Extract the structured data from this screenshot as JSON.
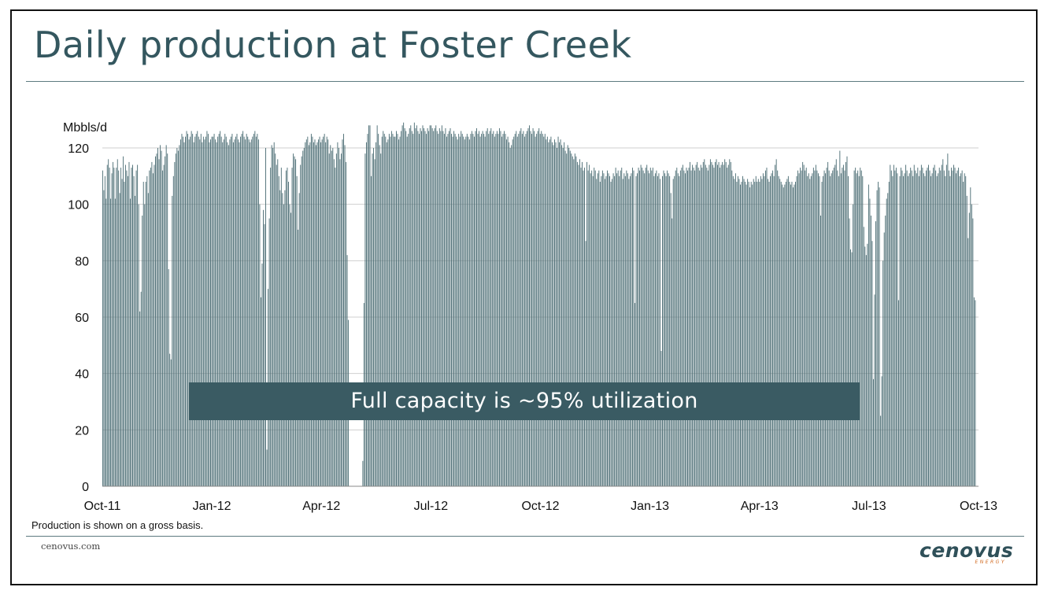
{
  "slide": {
    "title": "Daily production at Foster Creek",
    "note": "Production is shown on a gross basis.",
    "website": "cenovus.com",
    "logo_text": "cenovus",
    "logo_subtext": "ENERGY",
    "annotation": "Full capacity is ~95% utilization"
  },
  "colors": {
    "title": "#34575f",
    "bar": "#4e6f76",
    "banner": "#3a5b63",
    "logo_accent": "#d2691e"
  },
  "chart_data": {
    "type": "bar",
    "ylabel": "Mbbls/d",
    "ylim": [
      0,
      120
    ],
    "yticks": [
      0,
      20,
      40,
      60,
      80,
      100,
      120
    ],
    "grid": true,
    "xticks": [
      "Oct-11",
      "Jan-12",
      "Apr-12",
      "Jul-12",
      "Oct-12",
      "Jan-13",
      "Apr-13",
      "Jul-13",
      "Oct-13"
    ],
    "x_start": "2011-10-01",
    "x_end": "2013-10-01",
    "series": [
      {
        "name": "Daily production",
        "segments": [
          {
            "start": "2011-10-01",
            "end": "2011-10-20",
            "values": [
              112,
              105,
              110,
              102,
              114,
              116,
              113,
              102,
              111,
              115,
              113,
              102,
              113,
              116,
              112,
              104,
              113,
              109,
              117,
              108
            ]
          },
          {
            "start": "2011-10-20",
            "end": "2011-11-05",
            "values": [
              114,
              112,
              110,
              115,
              102,
              113,
              114,
              110,
              103,
              112,
              114,
              100,
              62,
              69,
              96,
              108
            ]
          },
          {
            "start": "2011-11-05",
            "end": "2011-12-01",
            "values": [
              100,
              108,
              110,
              104,
              112,
              113,
              115,
              111,
              114,
              117,
              118,
              120,
              116,
              121,
              119,
              112,
              114,
              117,
              121,
              118,
              77,
              47,
              45,
              103,
              110,
              115
            ]
          },
          {
            "start": "2011-12-01",
            "end": "2012-01-01",
            "values": [
              118,
              120,
              119,
              121,
              123,
              125,
              124,
              122,
              124,
              126,
              125,
              123,
              124,
              126,
              125,
              122,
              124,
              125,
              126,
              124,
              123,
              125,
              122,
              124,
              123,
              124,
              126,
              125,
              122,
              123,
              124
            ]
          },
          {
            "start": "2012-01-01",
            "end": "2012-02-01",
            "values": [
              124,
              125,
              123,
              122,
              124,
              125,
              126,
              124,
              122,
              123,
              125,
              124,
              122,
              121,
              123,
              124,
              125,
              122,
              123,
              124,
              125,
              123,
              122,
              124,
              125,
              126,
              124,
              123,
              125,
              124,
              123
            ]
          },
          {
            "start": "2012-02-01",
            "end": "2012-03-01",
            "values": [
              122,
              123,
              124,
              125,
              126,
              124,
              125,
              123,
              100,
              67,
              79,
              98,
              93,
              120,
              13,
              70,
              95,
              113,
              121,
              120,
              122,
              118,
              114,
              116,
              110,
              105,
              113,
              104,
              100
            ]
          },
          {
            "start": "2012-03-01",
            "end": "2012-04-01",
            "values": [
              105,
              112,
              113,
              108,
              100,
              97,
              113,
              118,
              117,
              116,
              110,
              91,
              104,
              114,
              117,
              119,
              120,
              122,
              123,
              124,
              121,
              122,
              125,
              124,
              122,
              123,
              121,
              122,
              123,
              124,
              122
            ]
          },
          {
            "start": "2012-04-01",
            "end": "2012-04-24",
            "values": [
              123,
              124,
              125,
              122,
              124,
              123,
              118,
              121,
              119,
              120,
              116,
              113,
              118,
              122,
              120,
              116,
              118,
              123,
              125,
              121,
              115,
              82,
              59
            ]
          },
          {
            "start": "2012-05-05",
            "end": "2012-06-01",
            "values": [
              9,
              65,
              118,
              122,
              125,
              128,
              128,
              110,
              118,
              120,
              116,
              122,
              128,
              125,
              121,
              118,
              124,
              126,
              125,
              124,
              122,
              123,
              125,
              124,
              126,
              125,
              124
            ]
          },
          {
            "start": "2012-06-01",
            "end": "2012-07-01",
            "values": [
              124,
              126,
              125,
              123,
              124,
              126,
              128,
              129,
              127,
              126,
              124,
              125,
              127,
              128,
              126,
              125,
              129,
              127,
              128,
              126,
              125,
              127,
              126,
              128,
              127,
              126,
              125,
              127,
              126,
              128
            ]
          },
          {
            "start": "2012-07-01",
            "end": "2012-08-01",
            "values": [
              128,
              127,
              126,
              127,
              128,
              126,
              125,
              127,
              126,
              128,
              126,
              125,
              127,
              124,
              125,
              126,
              127,
              125,
              124,
              126,
              125,
              124,
              123,
              125,
              124,
              126,
              125,
              124,
              123,
              124,
              125
            ]
          },
          {
            "start": "2012-08-01",
            "end": "2012-09-01",
            "values": [
              124,
              123,
              125,
              126,
              125,
              124,
              126,
              127,
              125,
              126,
              124,
              125,
              126,
              125,
              124,
              126,
              127,
              125,
              126,
              127,
              125,
              126,
              124,
              125,
              126,
              125,
              127,
              126,
              124,
              125,
              126
            ]
          },
          {
            "start": "2012-09-01",
            "end": "2012-10-01",
            "values": [
              125,
              123,
              124,
              122,
              120,
              121,
              123,
              124,
              125,
              126,
              124,
              125,
              126,
              127,
              125,
              126,
              124,
              125,
              126,
              127,
              128,
              126,
              125,
              127,
              126,
              124,
              125,
              126,
              127,
              125
            ]
          },
          {
            "start": "2012-10-01",
            "end": "2012-11-01",
            "values": [
              126,
              125,
              124,
              125,
              123,
              124,
              122,
              123,
              124,
              122,
              121,
              123,
              122,
              120,
              124,
              122,
              123,
              121,
              120,
              122,
              119,
              118,
              121,
              120,
              119,
              118,
              117,
              116,
              118,
              117,
              115
            ]
          },
          {
            "start": "2012-11-01",
            "end": "2012-12-01",
            "values": [
              114,
              116,
              113,
              115,
              112,
              113,
              87,
              115,
              112,
              114,
              111,
              112,
              110,
              113,
              112,
              109,
              111,
              112,
              108,
              110,
              112,
              111,
              109,
              110,
              112,
              111,
              110,
              108,
              109,
              111
            ]
          },
          {
            "start": "2012-12-01",
            "end": "2013-01-01",
            "values": [
              110,
              113,
              111,
              112,
              110,
              112,
              113,
              109,
              111,
              110,
              112,
              111,
              109,
              110,
              111,
              113,
              112,
              65,
              110,
              111,
              113,
              112,
              114,
              113,
              112,
              111,
              113,
              114,
              112,
              111,
              113
            ]
          },
          {
            "start": "2013-01-01",
            "end": "2013-02-01",
            "values": [
              112,
              113,
              110,
              111,
              112,
              110,
              111,
              109,
              48,
              110,
              112,
              111,
              110,
              112,
              111,
              110,
              104,
              95,
              109,
              110,
              112,
              113,
              111,
              110,
              112,
              113,
              114,
              112,
              111,
              113,
              112
            ]
          },
          {
            "start": "2013-02-01",
            "end": "2013-03-01",
            "values": [
              113,
              115,
              112,
              114,
              113,
              112,
              114,
              115,
              113,
              112,
              114,
              113,
              115,
              116,
              114,
              113,
              112,
              114,
              116,
              115,
              114,
              113,
              115,
              116,
              114,
              115,
              113,
              114
            ]
          },
          {
            "start": "2013-03-01",
            "end": "2013-04-01",
            "values": [
              115,
              114,
              116,
              115,
              113,
              114,
              116,
              115,
              112,
              110,
              109,
              111,
              108,
              110,
              109,
              107,
              108,
              110,
              109,
              108,
              107,
              109,
              108,
              106,
              108,
              107,
              109,
              108,
              110,
              108,
              109
            ]
          },
          {
            "start": "2013-04-01",
            "end": "2013-05-01",
            "values": [
              108,
              110,
              109,
              111,
              110,
              112,
              113,
              109,
              108,
              110,
              111,
              112,
              110,
              114,
              116,
              112,
              110,
              109,
              108,
              107,
              106,
              107,
              108,
              109,
              110,
              108,
              107,
              108,
              106,
              107
            ]
          },
          {
            "start": "2013-05-01",
            "end": "2013-06-01",
            "values": [
              108,
              110,
              112,
              111,
              113,
              112,
              115,
              114,
              112,
              113,
              110,
              111,
              109,
              110,
              111,
              113,
              112,
              114,
              112,
              111,
              110,
              96,
              108,
              110,
              112,
              111,
              113,
              115,
              112,
              110,
              111
            ]
          },
          {
            "start": "2013-06-01",
            "end": "2013-07-01",
            "values": [
              112,
              113,
              114,
              116,
              112,
              110,
              119,
              111,
              113,
              114,
              112,
              115,
              117,
              110,
              95,
              84,
              83,
              100,
              112,
              113,
              111,
              112,
              110,
              113,
              112,
              110,
              92,
              85,
              82,
              86
            ]
          },
          {
            "start": "2013-07-01",
            "end": "2013-08-01",
            "values": [
              107,
              102,
              96,
              87,
              38,
              68,
              94,
              105,
              108,
              106,
              25,
              39,
              80,
              90,
              96,
              102,
              104,
              108,
              114,
              112,
              110,
              114,
              112,
              113,
              111,
              66,
              110,
              113,
              112,
              110,
              111
            ]
          },
          {
            "start": "2013-08-01",
            "end": "2013-09-01",
            "values": [
              114,
              112,
              110,
              111,
              113,
              112,
              110,
              114,
              112,
              111,
              113,
              110,
              112,
              114,
              113,
              111,
              110,
              112,
              113,
              114,
              112,
              110,
              111,
              113,
              114,
              112,
              110,
              111,
              113,
              112,
              114
            ]
          },
          {
            "start": "2013-09-01",
            "end": "2013-09-29",
            "values": [
              116,
              112,
              110,
              114,
              118,
              112,
              110,
              113,
              112,
              114,
              113,
              111,
              112,
              113,
              110,
              111,
              112,
              108,
              111,
              110,
              103,
              88,
              97,
              106,
              100,
              95,
              67,
              66
            ]
          }
        ]
      }
    ]
  }
}
